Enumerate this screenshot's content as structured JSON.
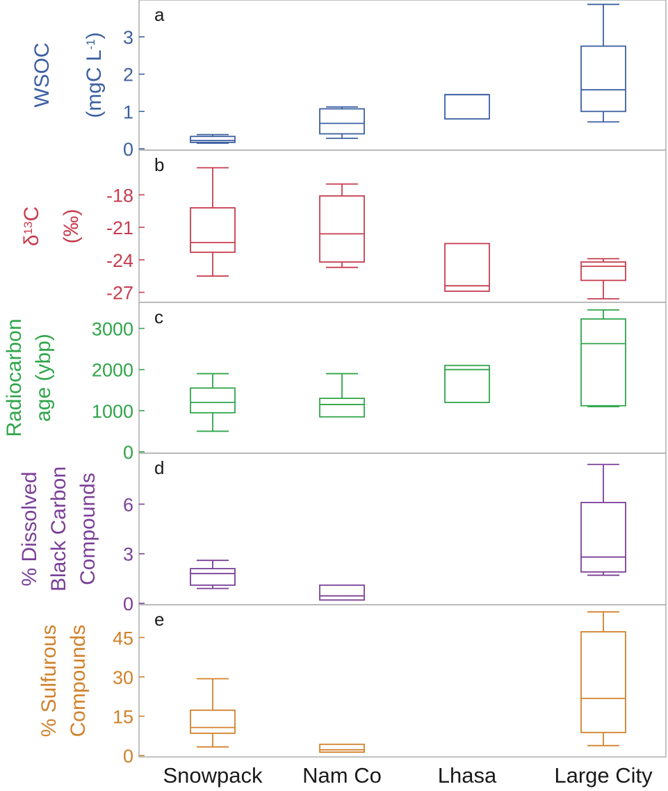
{
  "colors": {
    "a": "#3b5fa0",
    "b": "#c63d4f",
    "c": "#2fa54a",
    "d": "#7a3f97",
    "e": "#d1812a",
    "frame": "#b3b3b3",
    "axis_text": "#1a1a1a"
  },
  "categories": [
    "Snowpack",
    "Nam Co",
    "Lhasa",
    "Large City"
  ],
  "chart_data": [
    {
      "panel": "a",
      "type": "box",
      "ylabel_main": "WSOC",
      "ylabel_unit": "(mgC L",
      "ylabel_unit_sup": "-1",
      "ylabel_unit_end": ")",
      "ylim": [
        0,
        3.95
      ],
      "ticks": [
        0,
        1,
        2,
        3
      ],
      "tick_labels": [
        "0",
        "1",
        "2",
        "3"
      ],
      "boxes": [
        {
          "category": "Snowpack",
          "min": 0.15,
          "q1": 0.17,
          "median": 0.22,
          "q3": 0.33,
          "max": 0.38
        },
        {
          "category": "Nam Co",
          "min": 0.28,
          "q1": 0.4,
          "median": 0.68,
          "q3": 1.07,
          "max": 1.12
        },
        {
          "category": "Lhasa",
          "min": 0.8,
          "q1": 0.8,
          "median": 1.45,
          "q3": 1.45,
          "max": 1.45
        },
        {
          "category": "Large City",
          "min": 0.72,
          "q1": 1.0,
          "median": 1.58,
          "q3": 2.75,
          "max": 3.87
        }
      ]
    },
    {
      "panel": "b",
      "type": "box",
      "ylabel_main_prefix": "δ",
      "ylabel_main_sup": "13",
      "ylabel_main": "C",
      "ylabel_unit": "(‰)",
      "ylim": [
        -27.8,
        -14.0
      ],
      "ticks": [
        -18,
        -21,
        -24,
        -27
      ],
      "tick_labels": [
        "-18",
        "-21",
        "-24",
        "-27"
      ],
      "boxes": [
        {
          "category": "Snowpack",
          "min": -25.5,
          "q1": -23.3,
          "median": -22.4,
          "q3": -19.2,
          "max": -15.5
        },
        {
          "category": "Nam Co",
          "min": -24.7,
          "q1": -24.2,
          "median": -21.6,
          "q3": -18.1,
          "max": -17.0
        },
        {
          "category": "Lhasa",
          "min": -26.9,
          "q1": -26.9,
          "median": -26.4,
          "q3": -22.5,
          "max": -22.5
        },
        {
          "category": "Large City",
          "min": -27.6,
          "q1": -25.9,
          "median": -24.6,
          "q3": -24.2,
          "max": -23.9
        }
      ]
    },
    {
      "panel": "c",
      "type": "box",
      "ylabel_main": "Radiocarbon",
      "ylabel_unit": "age (ybp)",
      "ylim": [
        0,
        3600
      ],
      "ticks": [
        0,
        1000,
        2000,
        3000
      ],
      "tick_labels": [
        "0",
        "1000",
        "2000",
        "3000"
      ],
      "boxes": [
        {
          "category": "Snowpack",
          "min": 500,
          "q1": 950,
          "median": 1200,
          "q3": 1550,
          "max": 1900
        },
        {
          "category": "Nam Co",
          "min": 850,
          "q1": 850,
          "median": 1150,
          "q3": 1300,
          "max": 1900
        },
        {
          "category": "Lhasa",
          "min": 1200,
          "q1": 1200,
          "median": 2000,
          "q3": 2100,
          "max": 2100
        },
        {
          "category": "Large City",
          "min": 1100,
          "q1": 1120,
          "median": 2630,
          "q3": 3230,
          "max": 3450
        }
      ]
    },
    {
      "panel": "d",
      "type": "box",
      "ylabel_main": "% Dissolved",
      "ylabel_line2": "Black Carbon",
      "ylabel_unit": "Compounds",
      "ylim": [
        0,
        9.0
      ],
      "ticks": [
        0,
        3,
        6
      ],
      "tick_labels": [
        "0",
        "3",
        "6"
      ],
      "boxes": [
        {
          "category": "Snowpack",
          "min": 0.9,
          "q1": 1.1,
          "median": 1.8,
          "q3": 2.1,
          "max": 2.6
        },
        {
          "category": "Nam Co",
          "min": 0.2,
          "q1": 0.2,
          "median": 0.45,
          "q3": 1.1,
          "max": 1.1
        },
        {
          "category": "Large City",
          "min": 1.7,
          "q1": 1.9,
          "median": 2.8,
          "q3": 6.1,
          "max": 8.4
        }
      ]
    },
    {
      "panel": "e",
      "type": "box",
      "ylabel_main": "% Sulfurous",
      "ylabel_unit": "Compounds",
      "ylim": [
        0,
        57
      ],
      "ticks": [
        0,
        15,
        30,
        45
      ],
      "tick_labels": [
        "0",
        "15",
        "30",
        "45"
      ],
      "boxes": [
        {
          "category": "Snowpack",
          "min": 3.3,
          "q1": 8.5,
          "median": 10.7,
          "q3": 17.3,
          "max": 29.3
        },
        {
          "category": "Nam Co",
          "min": 1.3,
          "q1": 1.3,
          "median": 2.2,
          "q3": 4.3,
          "max": 4.3
        },
        {
          "category": "Large City",
          "min": 3.8,
          "q1": 8.8,
          "median": 21.8,
          "q3": 47.2,
          "max": 54.8
        }
      ]
    }
  ]
}
